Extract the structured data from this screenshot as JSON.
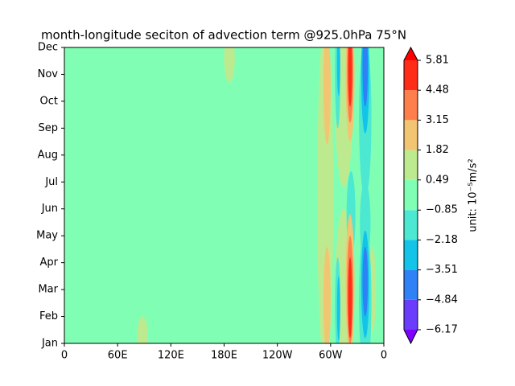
{
  "chart_data": {
    "type": "contourf",
    "title": "month-longitude seciton of advection term @925.0hPa 75°N",
    "xlim": [
      0,
      360
    ],
    "xticks": [
      0,
      {
        "value": 60,
        "label": "60E"
      },
      {
        "value": 120,
        "label": "120E"
      },
      {
        "value": 180,
        "label": "180E"
      },
      {
        "value": 240,
        "label": "120W"
      },
      {
        "value": 300,
        "label": "60W"
      },
      {
        "value": 360,
        "label": "0"
      }
    ],
    "categories": [
      "Jan",
      "Feb",
      "Mar",
      "Apr",
      "May",
      "Jun",
      "Jul",
      "Aug",
      "Sep",
      "Oct",
      "Nov",
      "Dec"
    ],
    "levels": [
      {
        "value": -6.17,
        "label": "−6.17"
      },
      {
        "value": -4.84,
        "label": "−4.84"
      },
      {
        "value": -3.51,
        "label": "−3.51"
      },
      {
        "value": -2.18,
        "label": "−2.18"
      },
      {
        "value": -0.85,
        "label": "−0.85"
      },
      0.49,
      1.82,
      3.15,
      4.48,
      5.81
    ],
    "colors": [
      "#7f00ff",
      "#6a3cfc",
      "#2f82f6",
      "#14c4e8",
      "#4ce8d2",
      "#80ffb4",
      "#bdea8e",
      "#f2c572",
      "#ff7f4c",
      "#ff2c18",
      "#ff0000"
    ],
    "colorbar_label": "unit: 10⁻⁵m/s²",
    "features": [
      {
        "lon": 186,
        "month": 10.6,
        "dlon": 6,
        "dmonth": 0.9,
        "value": 0.49
      },
      {
        "lon": 88,
        "month": 0.3,
        "dlon": 6,
        "dmonth": 0.7,
        "value": 0.49
      },
      {
        "lon": 294,
        "month": 5.5,
        "dlon": 9,
        "dmonth": 6.5,
        "value": 0.49
      },
      {
        "lon": 347,
        "month": 2,
        "dlon": 4,
        "dmonth": 1.6,
        "value": 0.49
      },
      {
        "lon": 315,
        "month": 9,
        "dlon": 10,
        "dmonth": 3.2,
        "value": 0.49
      },
      {
        "lon": 315,
        "month": 1.8,
        "dlon": 10,
        "dmonth": 3.2,
        "value": 0.49
      },
      {
        "lon": 296,
        "month": 9.6,
        "dlon": 4,
        "dmonth": 2.2,
        "value": 1.82
      },
      {
        "lon": 296,
        "month": 1.6,
        "dlon": 4,
        "dmonth": 2,
        "value": 1.82
      },
      {
        "lon": 323,
        "month": 4.8,
        "dlon": 5,
        "dmonth": 1.6,
        "value": -2.18
      },
      {
        "lon": 339,
        "month": 4.5,
        "dlon": 6,
        "dmonth": 1.5,
        "value": -2.18
      },
      {
        "lon": 339,
        "month": 8.4,
        "dlon": 7,
        "dmonth": 3,
        "value": -2.18
      },
      {
        "lon": 339,
        "month": 1.6,
        "dlon": 7,
        "dmonth": 2.8,
        "value": -2.18
      },
      {
        "lon": 308,
        "month": 10,
        "dlon": 3,
        "dmonth": 2,
        "value": -2.18
      },
      {
        "lon": 308,
        "month": 1.4,
        "dlon": 3,
        "dmonth": 1.8,
        "value": -2.18
      },
      {
        "lon": 339,
        "month": 10,
        "dlon": 4.5,
        "dmonth": 2.2,
        "value": -3.51
      },
      {
        "lon": 339,
        "month": 2.2,
        "dlon": 4.5,
        "dmonth": 2,
        "value": -3.51
      },
      {
        "lon": 339,
        "month": 10.3,
        "dlon": 3,
        "dmonth": 1.5,
        "value": -4.84
      },
      {
        "lon": 339,
        "month": 2.3,
        "dlon": 3,
        "dmonth": 1.3,
        "value": -4.84
      },
      {
        "lon": 309,
        "month": 10.4,
        "dlon": 1.8,
        "dmonth": 1.2,
        "value": -3.51
      },
      {
        "lon": 309,
        "month": 1.3,
        "dlon": 1.8,
        "dmonth": 1.2,
        "value": -3.51
      },
      {
        "lon": 322,
        "month": 9.9,
        "dlon": 5,
        "dmonth": 2.4,
        "value": 1.82
      },
      {
        "lon": 322,
        "month": 2.2,
        "dlon": 5,
        "dmonth": 2.6,
        "value": 1.82
      },
      {
        "lon": 322,
        "month": 10.1,
        "dlon": 3.5,
        "dmonth": 1.9,
        "value": 3.15
      },
      {
        "lon": 322,
        "month": 2.0,
        "dlon": 3.5,
        "dmonth": 2,
        "value": 3.15
      },
      {
        "lon": 322,
        "month": 10.2,
        "dlon": 2.2,
        "dmonth": 1.4,
        "value": 4.48
      },
      {
        "lon": 322,
        "month": 1.7,
        "dlon": 2.2,
        "dmonth": 1.5,
        "value": 4.48
      }
    ]
  }
}
